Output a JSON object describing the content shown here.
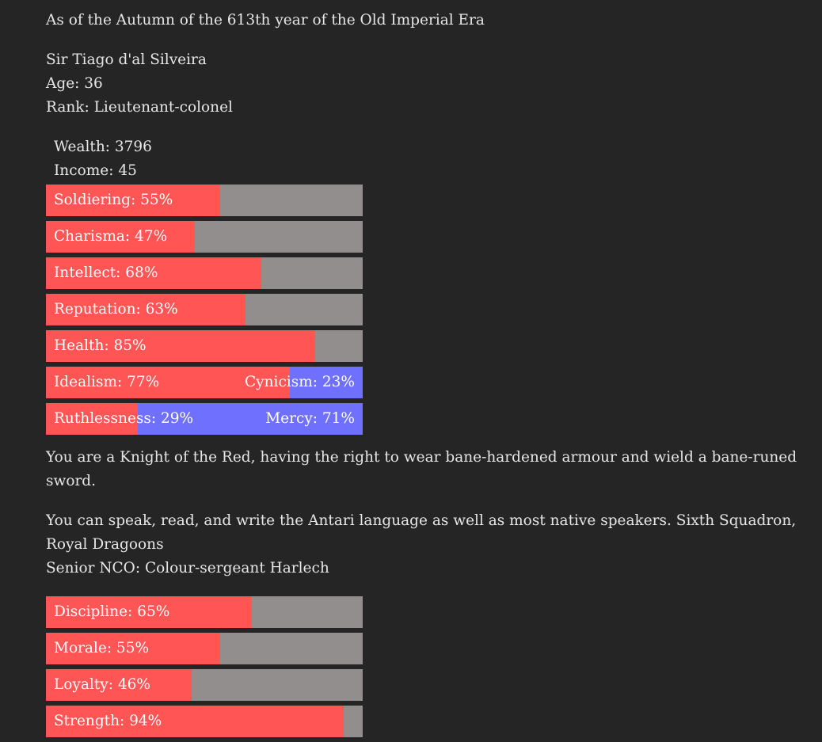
{
  "header": {
    "date_line": "As of the Autumn of the 613th year of the Old Imperial Era"
  },
  "character": {
    "name": "Sir Tiago d'al Silveira",
    "age": "Age: 36",
    "rank": "Rank: Lieutenant-colonel",
    "wealth": "Wealth: 3796",
    "income": "Income: 45"
  },
  "stats": [
    {
      "label": "Soldiering: 55%",
      "value": 55
    },
    {
      "label": "Charisma: 47%",
      "value": 47
    },
    {
      "label": "Intellect: 68%",
      "value": 68
    },
    {
      "label": "Reputation: 63%",
      "value": 63
    },
    {
      "label": "Health: 85%",
      "value": 85
    }
  ],
  "dual_stats": [
    {
      "left_label": "Idealism: 77%",
      "right_label": "Cynicism: 23%",
      "value": 77
    },
    {
      "left_label": "Ruthlessness: 29%",
      "right_label": "Mercy: 71%",
      "value": 29
    }
  ],
  "knight_text": "You are a Knight of the Red, having the right to wear bane-hardened armour and wield a bane-runed sword.",
  "language_text": "You can speak, read, and write the Antari language as well as most native speakers. Sixth Squadron, Royal Dragoons",
  "nco_text": "Senior NCO: Colour-sergeant Harlech",
  "unit_stats": [
    {
      "label": "Discipline: 65%",
      "value": 65
    },
    {
      "label": "Morale: 55%",
      "value": 55
    },
    {
      "label": "Loyalty: 46%",
      "value": 46
    },
    {
      "label": "Strength: 94%",
      "value": 94
    }
  ],
  "colors": {
    "background": "#252525",
    "text": "#e6e6e6",
    "fill_red": "#ff5555",
    "fill_blue": "#7070ff",
    "track_gray": "#928e8e"
  }
}
